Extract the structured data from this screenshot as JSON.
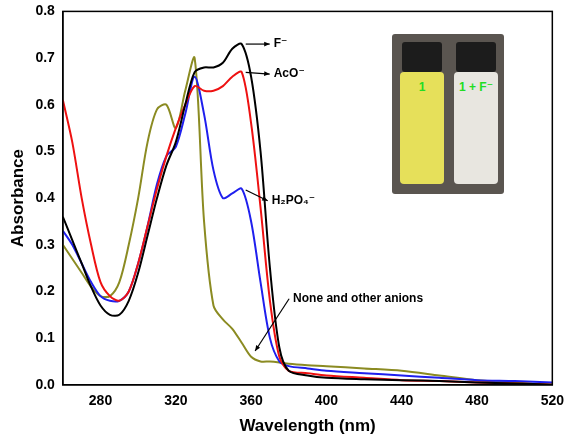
{
  "chart_data": {
    "type": "line",
    "xlabel": "Wavelength (nm)",
    "ylabel": "Absorbance",
    "xlim": [
      260,
      520
    ],
    "xticks": [
      280,
      320,
      360,
      400,
      440,
      480,
      520
    ],
    "ylim": [
      0,
      0.8
    ],
    "yticks": [
      {
        "value": 0,
        "label": "0.0"
      },
      0.1,
      0.2,
      0.3,
      0.4,
      0.5,
      0.6,
      0.7,
      0.8
    ],
    "grid": false,
    "x": [
      260,
      265,
      270,
      275,
      280,
      285,
      290,
      295,
      300,
      305,
      310,
      315,
      320,
      325,
      330,
      335,
      340,
      345,
      350,
      355,
      360,
      365,
      370,
      375,
      380,
      390,
      400,
      420,
      440,
      460,
      480,
      500,
      520
    ],
    "series": [
      {
        "name": "F⁻",
        "color": "#000000",
        "values": [
          0.36,
          0.31,
          0.26,
          0.21,
          0.17,
          0.15,
          0.15,
          0.18,
          0.24,
          0.32,
          0.4,
          0.47,
          0.52,
          0.6,
          0.67,
          0.68,
          0.68,
          0.69,
          0.72,
          0.73,
          0.66,
          0.5,
          0.25,
          0.08,
          0.03,
          0.02,
          0.015,
          0.012,
          0.01,
          0.008,
          0.005,
          0.003,
          0.0
        ]
      },
      {
        "name": "AcO⁻",
        "color": "#ee1111",
        "values": [
          0.61,
          0.52,
          0.4,
          0.3,
          0.22,
          0.19,
          0.18,
          0.2,
          0.26,
          0.34,
          0.42,
          0.49,
          0.55,
          0.6,
          0.64,
          0.63,
          0.63,
          0.64,
          0.66,
          0.67,
          0.56,
          0.38,
          0.18,
          0.06,
          0.03,
          0.025,
          0.02,
          0.015,
          0.01,
          0.008,
          0.005,
          0.003,
          0.0
        ]
      },
      {
        "name": "H₂PO₄⁻",
        "color": "#1f1fee",
        "values": [
          0.33,
          0.3,
          0.26,
          0.22,
          0.19,
          0.18,
          0.18,
          0.2,
          0.26,
          0.34,
          0.43,
          0.49,
          0.51,
          0.58,
          0.66,
          0.58,
          0.46,
          0.4,
          0.41,
          0.42,
          0.35,
          0.22,
          0.1,
          0.05,
          0.04,
          0.035,
          0.03,
          0.025,
          0.02,
          0.015,
          0.01,
          0.008,
          0.005
        ]
      },
      {
        "name": "None and other anions",
        "color": "#8b8b22",
        "values": [
          0.3,
          0.27,
          0.24,
          0.21,
          0.19,
          0.19,
          0.22,
          0.3,
          0.4,
          0.52,
          0.59,
          0.6,
          0.55,
          0.63,
          0.7,
          0.35,
          0.17,
          0.14,
          0.12,
          0.09,
          0.06,
          0.05,
          0.05,
          0.048,
          0.045,
          0.042,
          0.04,
          0.035,
          0.03,
          0.02,
          0.01,
          0.005,
          0.0
        ]
      }
    ],
    "inset_labels": [
      "1",
      "1 + F⁻"
    ]
  }
}
